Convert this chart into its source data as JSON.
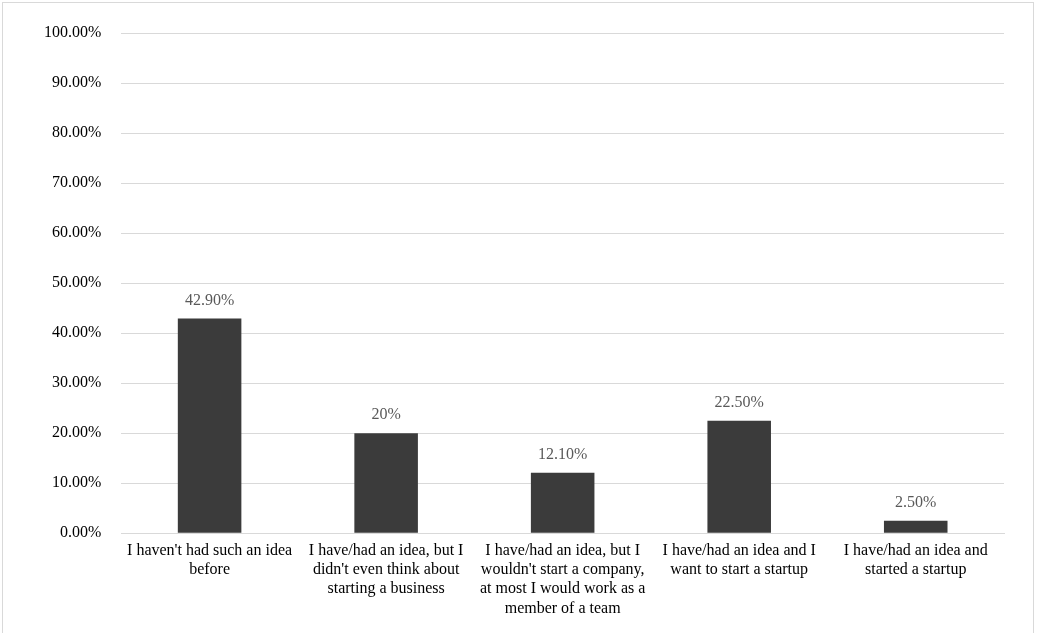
{
  "chart_data": {
    "type": "bar",
    "categories": [
      "I haven't had such an idea before",
      "I have/had an idea, but I didn't even think about starting a business",
      "I have/had an idea, but I wouldn't start a company, at most I would work as a member of a team",
      "I have/had an idea and I want to start a startup",
      "I have/had an idea and started a startup"
    ],
    "values": [
      42.9,
      20,
      12.1,
      22.5,
      2.5
    ],
    "value_labels": [
      "42.90%",
      "20%",
      "12.10%",
      "22.50%",
      "2.50%"
    ],
    "color": "#3b3b3b",
    "ylim": [
      0,
      100
    ],
    "yticks": [
      {
        "value": 0,
        "label": "0.00%"
      },
      {
        "value": 10,
        "label": "10.00%"
      },
      {
        "value": 20,
        "label": "20.00%"
      },
      {
        "value": 30,
        "label": "30.00%"
      },
      {
        "value": 40,
        "label": "40.00%"
      },
      {
        "value": 50,
        "label": "50.00%"
      },
      {
        "value": 60,
        "label": "60.00%"
      },
      {
        "value": 70,
        "label": "70.00%"
      },
      {
        "value": 80,
        "label": "80.00%"
      },
      {
        "value": 90,
        "label": "90.00%"
      },
      {
        "value": 100,
        "label": "100.00%"
      }
    ],
    "grid": "y",
    "legend": false
  }
}
